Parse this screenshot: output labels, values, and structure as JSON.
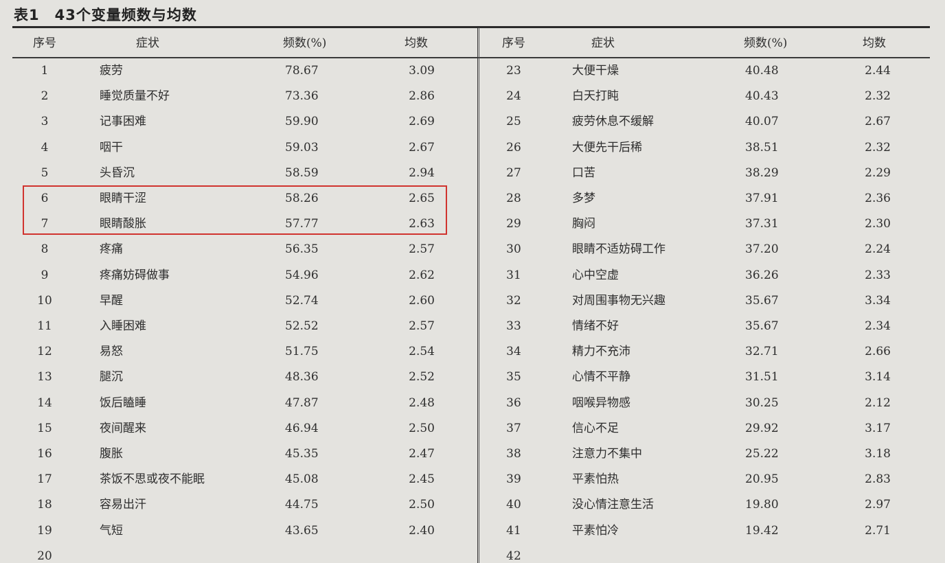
{
  "title": "表1　43个变量频数与均数",
  "headers": {
    "index": "序号",
    "symptom": "症状",
    "frequency": "频数(%)",
    "mean": "均数"
  },
  "highlight_color": "#d0332e",
  "left_rows": [
    {
      "index": "1",
      "symptom": "疲劳",
      "frequency": "78.67",
      "mean": "3.09"
    },
    {
      "index": "2",
      "symptom": "睡觉质量不好",
      "frequency": "73.36",
      "mean": "2.86"
    },
    {
      "index": "3",
      "symptom": "记事困难",
      "frequency": "59.90",
      "mean": "2.69"
    },
    {
      "index": "4",
      "symptom": "咽干",
      "frequency": "59.03",
      "mean": "2.67"
    },
    {
      "index": "5",
      "symptom": "头昏沉",
      "frequency": "58.59",
      "mean": "2.94"
    },
    {
      "index": "6",
      "symptom": "眼睛干涩",
      "frequency": "58.26",
      "mean": "2.65",
      "highlighted": true
    },
    {
      "index": "7",
      "symptom": "眼睛酸胀",
      "frequency": "57.77",
      "mean": "2.63",
      "highlighted": true
    },
    {
      "index": "8",
      "symptom": "疼痛",
      "frequency": "56.35",
      "mean": "2.57"
    },
    {
      "index": "9",
      "symptom": "疼痛妨碍做事",
      "frequency": "54.96",
      "mean": "2.62"
    },
    {
      "index": "10",
      "symptom": "早醒",
      "frequency": "52.74",
      "mean": "2.60"
    },
    {
      "index": "11",
      "symptom": "入睡困难",
      "frequency": "52.52",
      "mean": "2.57"
    },
    {
      "index": "12",
      "symptom": "易怒",
      "frequency": "51.75",
      "mean": "2.54"
    },
    {
      "index": "13",
      "symptom": "腿沉",
      "frequency": "48.36",
      "mean": "2.52"
    },
    {
      "index": "14",
      "symptom": "饭后瞌睡",
      "frequency": "47.87",
      "mean": "2.48"
    },
    {
      "index": "15",
      "symptom": "夜间醒来",
      "frequency": "46.94",
      "mean": "2.50"
    },
    {
      "index": "16",
      "symptom": "腹胀",
      "frequency": "45.35",
      "mean": "2.47"
    },
    {
      "index": "17",
      "symptom": "茶饭不思或夜不能眠",
      "frequency": "45.08",
      "mean": "2.45"
    },
    {
      "index": "18",
      "symptom": "容易出汗",
      "frequency": "44.75",
      "mean": "2.50"
    },
    {
      "index": "19",
      "symptom": "气短",
      "frequency": "43.65",
      "mean": "2.40"
    },
    {
      "index": "20",
      "symptom": "",
      "frequency": "",
      "mean": ""
    }
  ],
  "right_rows": [
    {
      "index": "23",
      "symptom": "大便干燥",
      "frequency": "40.48",
      "mean": "2.44"
    },
    {
      "index": "24",
      "symptom": "白天打盹",
      "frequency": "40.43",
      "mean": "2.32"
    },
    {
      "index": "25",
      "symptom": "疲劳休息不缓解",
      "frequency": "40.07",
      "mean": "2.67"
    },
    {
      "index": "26",
      "symptom": "大便先干后稀",
      "frequency": "38.51",
      "mean": "2.32"
    },
    {
      "index": "27",
      "symptom": "口苦",
      "frequency": "38.29",
      "mean": "2.29"
    },
    {
      "index": "28",
      "symptom": "多梦",
      "frequency": "37.91",
      "mean": "2.36"
    },
    {
      "index": "29",
      "symptom": "胸闷",
      "frequency": "37.31",
      "mean": "2.30"
    },
    {
      "index": "30",
      "symptom": "眼睛不适妨碍工作",
      "frequency": "37.20",
      "mean": "2.24"
    },
    {
      "index": "31",
      "symptom": "心中空虚",
      "frequency": "36.26",
      "mean": "2.33"
    },
    {
      "index": "32",
      "symptom": "对周围事物无兴趣",
      "frequency": "35.67",
      "mean": "3.34"
    },
    {
      "index": "33",
      "symptom": "情绪不好",
      "frequency": "35.67",
      "mean": "2.34"
    },
    {
      "index": "34",
      "symptom": "精力不充沛",
      "frequency": "32.71",
      "mean": "2.66"
    },
    {
      "index": "35",
      "symptom": "心情不平静",
      "frequency": "31.51",
      "mean": "3.14"
    },
    {
      "index": "36",
      "symptom": "咽喉异物感",
      "frequency": "30.25",
      "mean": "2.12"
    },
    {
      "index": "37",
      "symptom": "信心不足",
      "frequency": "29.92",
      "mean": "3.17"
    },
    {
      "index": "38",
      "symptom": "注意力不集中",
      "frequency": "25.22",
      "mean": "3.18"
    },
    {
      "index": "39",
      "symptom": "平素怕热",
      "frequency": "20.95",
      "mean": "2.83"
    },
    {
      "index": "40",
      "symptom": "没心情注意生活",
      "frequency": "19.80",
      "mean": "2.97"
    },
    {
      "index": "41",
      "symptom": "平素怕冷",
      "frequency": "19.42",
      "mean": "2.71"
    },
    {
      "index": "42",
      "symptom": "",
      "frequency": "",
      "mean": ""
    }
  ]
}
